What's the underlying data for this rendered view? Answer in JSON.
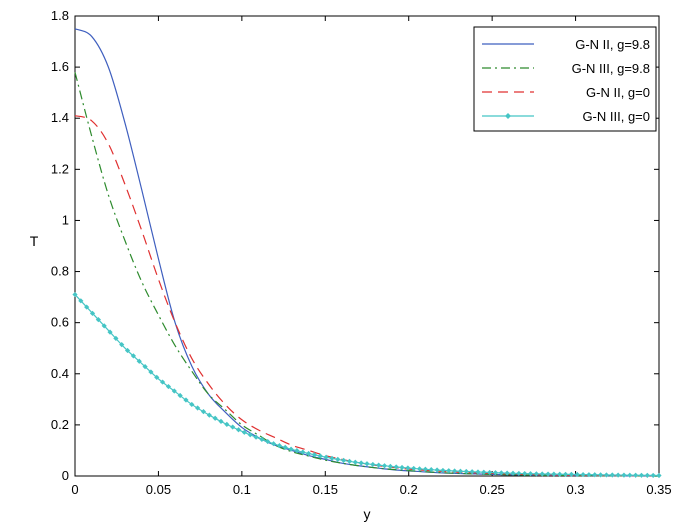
{
  "chart_data": {
    "type": "line",
    "title": "",
    "xlabel": "y",
    "ylabel": "T",
    "xlim": [
      0,
      0.35
    ],
    "ylim": [
      0,
      1.8
    ],
    "xticks": [
      0,
      0.05,
      0.1,
      0.15,
      0.2,
      0.25,
      0.3,
      0.35
    ],
    "xtick_labels": [
      "0",
      "0.05",
      "0.1",
      "0.15",
      "0.2",
      "0.25",
      "0.3",
      "0.35"
    ],
    "yticks": [
      0,
      0.2,
      0.4,
      0.6,
      0.8,
      1.0,
      1.2,
      1.4,
      1.6,
      1.8
    ],
    "ytick_labels": [
      "0",
      "0.2",
      "0.4",
      "0.6",
      "0.8",
      "1",
      "1.2",
      "1.4",
      "1.6",
      "1.8"
    ],
    "grid": false,
    "legend_position": "top-right",
    "x": [
      0,
      0.01,
      0.02,
      0.03,
      0.04,
      0.05,
      0.06,
      0.07,
      0.08,
      0.09,
      0.1,
      0.11,
      0.12,
      0.13,
      0.14,
      0.15,
      0.16,
      0.17,
      0.18,
      0.19,
      0.2,
      0.22,
      0.24,
      0.26,
      0.28,
      0.3,
      0.32,
      0.35
    ],
    "series": [
      {
        "name": "G-N II, g=9.8",
        "color": "#3f5fbf",
        "style": "solid",
        "values": [
          1.75,
          1.72,
          1.6,
          1.38,
          1.12,
          0.85,
          0.6,
          0.43,
          0.32,
          0.25,
          0.19,
          0.15,
          0.12,
          0.1,
          0.08,
          0.065,
          0.05,
          0.04,
          0.032,
          0.025,
          0.02,
          0.012,
          0.008,
          0.005,
          0.003,
          0.002,
          0.001,
          0.0
        ]
      },
      {
        "name": "G-N III, g=9.8",
        "color": "#2e8b2e",
        "style": "dashdot",
        "values": [
          1.58,
          1.33,
          1.1,
          0.92,
          0.76,
          0.63,
          0.51,
          0.41,
          0.32,
          0.26,
          0.2,
          0.16,
          0.12,
          0.095,
          0.078,
          0.062,
          0.05,
          0.04,
          0.032,
          0.026,
          0.021,
          0.013,
          0.008,
          0.005,
          0.003,
          0.002,
          0.001,
          0.0
        ]
      },
      {
        "name": "G-N II, g=0",
        "color": "#e03030",
        "style": "dashed",
        "values": [
          1.41,
          1.39,
          1.3,
          1.14,
          0.96,
          0.77,
          0.6,
          0.46,
          0.36,
          0.28,
          0.22,
          0.18,
          0.15,
          0.12,
          0.1,
          0.08,
          0.065,
          0.052,
          0.042,
          0.034,
          0.027,
          0.018,
          0.012,
          0.008,
          0.005,
          0.003,
          0.002,
          0.001
        ]
      },
      {
        "name": "G-N III, g=0",
        "color": "#45c5c5",
        "style": "dotted-markers",
        "values": [
          0.71,
          0.64,
          0.57,
          0.5,
          0.44,
          0.38,
          0.33,
          0.28,
          0.24,
          0.205,
          0.175,
          0.148,
          0.124,
          0.104,
          0.088,
          0.074,
          0.062,
          0.052,
          0.044,
          0.037,
          0.031,
          0.022,
          0.016,
          0.011,
          0.008,
          0.006,
          0.004,
          0.002
        ]
      }
    ]
  }
}
